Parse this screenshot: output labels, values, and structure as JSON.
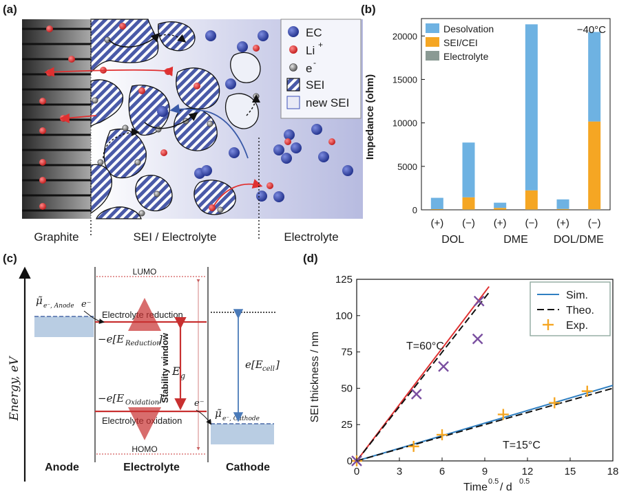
{
  "panels": {
    "a": {
      "label": "(a)",
      "legend": {
        "ec": "EC",
        "li": "Li",
        "li_sup": "+",
        "e": "e",
        "e_sup": "-",
        "sei": "SEI",
        "new_sei": "new SEI"
      },
      "regions": [
        "Graphite",
        "SEI / Electrolyte",
        "Electrolyte"
      ],
      "colors": {
        "ec": "#3a4fb8",
        "li": "#e03030",
        "electron": "#888888",
        "sei_stripe": "#4a5aa8"
      }
    },
    "b": {
      "label": "(b)",
      "temperature": "−40°C",
      "ylabel": "Impedance (ohm)",
      "groups": [
        "DOL",
        "DME",
        "DOL/DME"
      ],
      "chart_data": {
        "type": "bar",
        "categories": [
          "(+)",
          "(−)",
          "(+)",
          "(−)",
          "(+)",
          "(−)"
        ],
        "groups": [
          "DOL",
          "DME",
          "DOL/DME"
        ],
        "series": [
          {
            "name": "Electrolyte",
            "color": "#8a9a94",
            "values": [
              20,
              40,
              20,
              40,
              20,
              60
            ]
          },
          {
            "name": "SEI/CEI",
            "color": "#f5a623",
            "values": [
              60,
              1400,
              200,
              2200,
              80,
              10100
            ]
          },
          {
            "name": "Desolvation",
            "color": "#6eb2e2",
            "values": [
              1300,
              6300,
              600,
              19100,
              1100,
              10300
            ]
          }
        ],
        "ylim": [
          0,
          22000
        ],
        "yticks": [
          "0",
          "5000",
          "10000",
          "15000",
          "20000"
        ],
        "legend": [
          "Desolvation",
          "SEI/CEI",
          "Electrolyte"
        ]
      }
    },
    "c": {
      "label": "(c)",
      "yaxis": "Energy, eV",
      "lumo": "LUMO",
      "homo": "HOMO",
      "reduction": "Electrolyte reduction",
      "oxidation": "Electrolyte oxidation",
      "stability": "Stability window",
      "eg": "E",
      "eg_sub": "g",
      "e_reduction": "−e[E",
      "e_reduction_sub": "Reduction",
      "e_oxidation": "−e[E",
      "e_oxidation_sub": "Oxidation",
      "ecell": "e[E",
      "ecell_sub": "cell",
      "mu_anode": "μ̃",
      "mu_anode_sub": "e⁻, Anode",
      "mu_cathode": "μ̃",
      "mu_cathode_sub": "e⁻, Cathode",
      "electron": "e⁻",
      "bottom": [
        "Anode",
        "Electrolyte",
        "Cathode"
      ]
    },
    "d": {
      "label": "(d)",
      "chart_data": {
        "type": "line",
        "xlabel": "Time",
        "xlabel_sup": "0.5",
        "xlabel_unit": " / d",
        "xlabel_unit_sup": "0.5",
        "ylabel": "SEI thickness / nm",
        "xlim": [
          0,
          18
        ],
        "ylim": [
          0,
          125
        ],
        "xticks": [
          "0",
          "3",
          "6",
          "9",
          "12",
          "15",
          "18"
        ],
        "yticks": [
          "0",
          "25",
          "50",
          "75",
          "100",
          "125"
        ],
        "legend": [
          "Sim.",
          "Theo.",
          "Exp."
        ],
        "annotations": [
          "T=60°C",
          "T=15°C"
        ],
        "series": [
          {
            "name": "Sim.",
            "color": "#2f7fc1",
            "x": [
              0,
              18
            ],
            "y": [
              0,
              52
            ]
          },
          {
            "name": "Theo.",
            "color": "#111111",
            "x": [
              0,
              18
            ],
            "y": [
              0,
              50
            ]
          },
          {
            "name": "Sim.",
            "color": "#e03030",
            "x": [
              0,
              9.3
            ],
            "y": [
              0,
              120
            ]
          },
          {
            "name": "Theo.",
            "color": "#111111",
            "x": [
              0,
              9.3
            ],
            "y": [
              0,
              116
            ]
          }
        ],
        "exp_15": {
          "color": "#f5a623",
          "x": [
            0,
            4,
            6,
            10.3,
            13.9,
            16.2
          ],
          "y": [
            0,
            10,
            18,
            32,
            40,
            48
          ]
        },
        "exp_60": {
          "color": "#7a4fa0",
          "x": [
            0,
            4.2,
            6.1,
            8.5,
            8.6
          ],
          "y": [
            0,
            46,
            65,
            84,
            110
          ]
        }
      }
    }
  }
}
